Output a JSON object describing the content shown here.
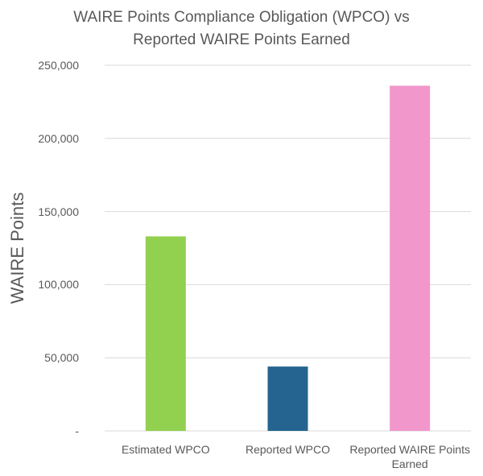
{
  "chart_data": {
    "type": "bar",
    "title": "WAIRE Points Compliance Obligation (WPCO) vs Reported WAIRE Points Earned",
    "y_label": "WAIRE Points",
    "categories": [
      "Estimated WPCO",
      "Reported WPCO",
      "Reported WAIRE Points Earned"
    ],
    "values": [
      133000,
      44000,
      236000
    ],
    "colors": [
      "#92d050",
      "#256490",
      "#f197cb"
    ],
    "ylim": [
      0,
      250000
    ],
    "yticks": [
      {
        "value": 0,
        "label": "-"
      },
      {
        "value": 50000,
        "label": "50,000"
      },
      {
        "value": 100000,
        "label": "100,000"
      },
      {
        "value": 150000,
        "label": "150,000"
      },
      {
        "value": 200000,
        "label": "200,000"
      },
      {
        "value": 250000,
        "label": "250,000"
      }
    ],
    "grid": true
  }
}
